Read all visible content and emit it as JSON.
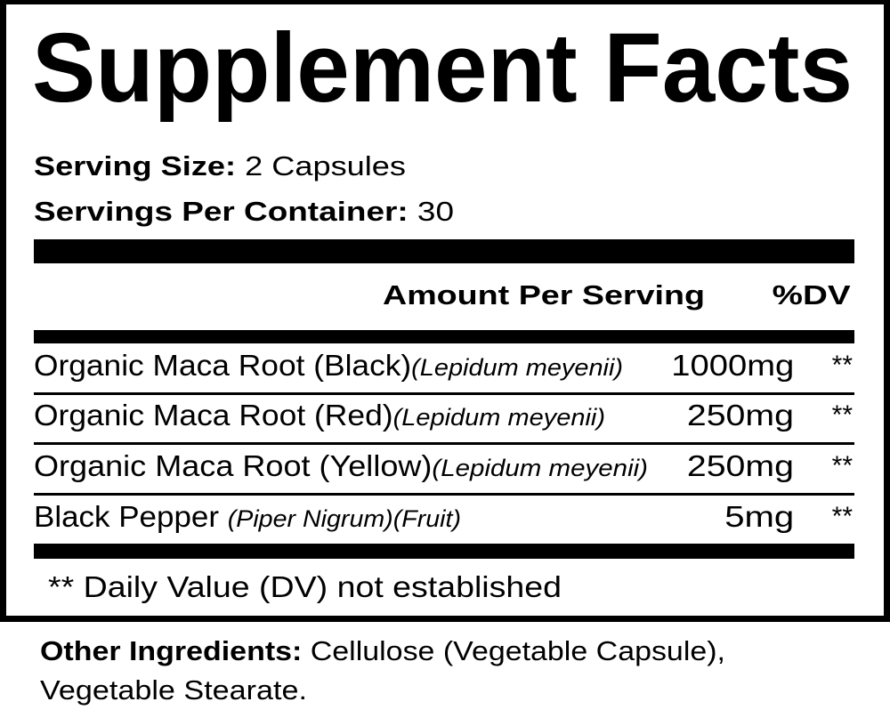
{
  "title": "Supplement Facts",
  "serving_size": {
    "label": "Serving Size:",
    "value": "2 Capsules"
  },
  "servings_per_container": {
    "label": "Servings Per Container:",
    "value": "30"
  },
  "header": {
    "amount": "Amount Per Serving",
    "dv": "%DV"
  },
  "rows": [
    {
      "name": "Organic Maca Root (Black)",
      "latin": "(Lepidum meyenii)",
      "amount": "1000mg",
      "dv": "**"
    },
    {
      "name": "Organic Maca Root (Red)",
      "latin": "(Lepidum meyenii)",
      "amount": "250mg",
      "dv": "**"
    },
    {
      "name": "Organic Maca Root (Yellow)",
      "latin": "(Lepidum meyenii)",
      "amount": "250mg",
      "dv": "**"
    },
    {
      "name": "Black Pepper ",
      "latin": "(Piper Nigrum)(Fruit)",
      "amount": "5mg",
      "dv": "**"
    }
  ],
  "footnote": "** Daily Value (DV) not established",
  "other_ingredients": {
    "label": "Other Ingredients:",
    "line1": " Cellulose (Vegetable Capsule),",
    "line2": "Vegetable Stearate."
  }
}
